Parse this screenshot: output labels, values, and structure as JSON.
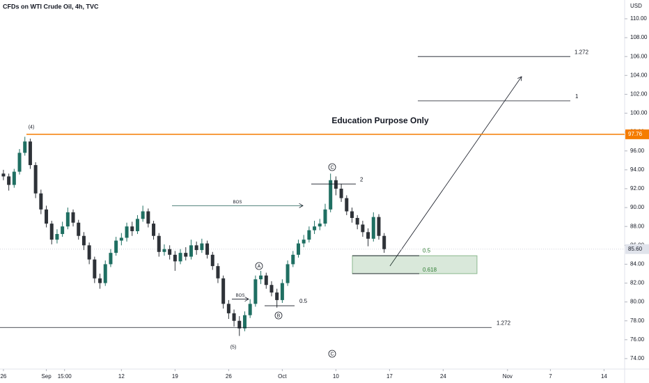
{
  "chart_data": {
    "type": "candlestick",
    "title": "CFDs on WTI Crude Oil, 4h, TVC",
    "y_axis_label": "USD",
    "watermark": "Education Purpose Only",
    "up_color": "#1f6f62",
    "down_color": "#2e3238",
    "xlim": [
      -0.32,
      57.92
    ],
    "xticks": [
      {
        "value": 0,
        "label": "26"
      },
      {
        "value": 4,
        "label": "Sep"
      },
      {
        "value": 5.7,
        "label": "15:00"
      },
      {
        "value": 11,
        "label": "12"
      },
      {
        "value": 16,
        "label": "19"
      },
      {
        "value": 21,
        "label": "26"
      },
      {
        "value": 26,
        "label": "Oct"
      },
      {
        "value": 31,
        "label": "10"
      },
      {
        "value": 36,
        "label": "17"
      },
      {
        "value": 41,
        "label": "24"
      },
      {
        "value": 47,
        "label": "Nov"
      },
      {
        "value": 51,
        "label": "7"
      },
      {
        "value": 56,
        "label": "14"
      }
    ],
    "ylim": [
      72.89,
      111.99
    ],
    "yticks": [
      {
        "value": 74,
        "label": "74.00"
      },
      {
        "value": 76,
        "label": "76.00"
      },
      {
        "value": 78,
        "label": "78.00"
      },
      {
        "value": 80,
        "label": "80.00"
      },
      {
        "value": 82,
        "label": "82.00"
      },
      {
        "value": 84,
        "label": "84.00"
      },
      {
        "value": 86,
        "label": "86.00"
      },
      {
        "value": 88,
        "label": "88.00"
      },
      {
        "value": 90,
        "label": "90.00"
      },
      {
        "value": 92,
        "label": "92.00"
      },
      {
        "value": 94,
        "label": "94.00"
      },
      {
        "value": 96,
        "label": "96.00"
      },
      {
        "value": 98,
        "label": "98.00"
      },
      {
        "value": 100,
        "label": "100.00"
      },
      {
        "value": 102,
        "label": "102.00"
      },
      {
        "value": 104,
        "label": "104.00"
      },
      {
        "value": 106,
        "label": "106.00"
      },
      {
        "value": 108,
        "label": "108.00"
      },
      {
        "value": 110,
        "label": "110.00"
      }
    ],
    "x": [
      0,
      0.5,
      1,
      1.5,
      2,
      2.5,
      3,
      3.5,
      4,
      4.5,
      5,
      5.5,
      6,
      6.5,
      7,
      7.5,
      8,
      8.5,
      9,
      9.5,
      10,
      10.5,
      11,
      11.5,
      12,
      12.5,
      13,
      13.5,
      14,
      14.5,
      15,
      15.5,
      16,
      16.5,
      17,
      17.5,
      18,
      18.5,
      19,
      19.5,
      20,
      20.5,
      21,
      21.5,
      22,
      22.5,
      23,
      23.5,
      24,
      24.5,
      25,
      25.5,
      26,
      26.5,
      27,
      27.5,
      28,
      28.5,
      29,
      29.5,
      30,
      30.5,
      31,
      31.5,
      32,
      32.5,
      33,
      33.5,
      34,
      34.5,
      35,
      35.5
    ],
    "candles": [
      [
        93.6,
        94.0,
        92.9,
        93.3
      ],
      [
        93.3,
        93.6,
        91.8,
        92.4
      ],
      [
        92.4,
        94.1,
        92.1,
        93.8
      ],
      [
        93.8,
        96.2,
        93.5,
        95.8
      ],
      [
        95.8,
        97.5,
        95.5,
        97.0
      ],
      [
        97.0,
        97.3,
        94.1,
        94.5
      ],
      [
        94.5,
        94.8,
        91.0,
        91.5
      ],
      [
        91.5,
        91.9,
        89.3,
        89.8
      ],
      [
        89.8,
        90.2,
        87.9,
        88.3
      ],
      [
        88.3,
        88.6,
        86.1,
        86.6
      ],
      [
        86.6,
        87.7,
        86.2,
        87.2
      ],
      [
        87.2,
        88.5,
        86.9,
        88.0
      ],
      [
        88.0,
        90.0,
        87.7,
        89.5
      ],
      [
        89.5,
        89.8,
        88.0,
        88.4
      ],
      [
        88.4,
        88.7,
        86.6,
        87.0
      ],
      [
        87.0,
        87.4,
        85.5,
        86.0
      ],
      [
        86.0,
        86.3,
        84.0,
        84.5
      ],
      [
        84.5,
        84.8,
        82.0,
        82.5
      ],
      [
        82.5,
        83.0,
        81.4,
        82.0
      ],
      [
        82.0,
        84.4,
        81.7,
        84.0
      ],
      [
        84.0,
        85.6,
        83.7,
        85.2
      ],
      [
        85.2,
        86.9,
        84.9,
        86.5
      ],
      [
        86.5,
        87.3,
        86.0,
        86.8
      ],
      [
        86.8,
        88.4,
        86.4,
        88.0
      ],
      [
        88.0,
        88.5,
        87.0,
        87.5
      ],
      [
        87.5,
        89.2,
        87.2,
        88.8
      ],
      [
        88.8,
        90.2,
        88.5,
        89.6
      ],
      [
        89.6,
        89.9,
        87.9,
        88.3
      ],
      [
        88.3,
        88.6,
        86.6,
        87.0
      ],
      [
        87.0,
        87.3,
        84.8,
        85.3
      ],
      [
        85.3,
        86.1,
        84.9,
        85.6
      ],
      [
        85.6,
        86.0,
        84.5,
        85.0
      ],
      [
        85.0,
        85.4,
        83.3,
        84.3
      ],
      [
        84.3,
        85.6,
        84.0,
        85.2
      ],
      [
        85.2,
        85.8,
        84.4,
        84.8
      ],
      [
        84.8,
        86.6,
        84.5,
        86.0
      ],
      [
        86.0,
        86.4,
        85.0,
        85.5
      ],
      [
        85.5,
        86.7,
        85.2,
        86.2
      ],
      [
        86.2,
        86.5,
        84.6,
        85.0
      ],
      [
        85.0,
        85.3,
        83.4,
        83.8
      ],
      [
        83.8,
        84.1,
        82.0,
        82.5
      ],
      [
        82.5,
        82.8,
        79.3,
        79.8
      ],
      [
        79.8,
        80.2,
        78.2,
        78.8
      ],
      [
        78.8,
        79.2,
        77.4,
        78.0
      ],
      [
        78.0,
        78.5,
        76.4,
        77.2
      ],
      [
        77.2,
        79.0,
        76.9,
        78.6
      ],
      [
        78.6,
        80.3,
        78.3,
        79.8
      ],
      [
        79.8,
        82.8,
        79.5,
        82.4
      ],
      [
        82.4,
        83.3,
        81.9,
        82.8
      ],
      [
        82.8,
        83.1,
        81.4,
        81.8
      ],
      [
        81.8,
        82.2,
        80.6,
        81.0
      ],
      [
        81.0,
        81.4,
        79.4,
        80.2
      ],
      [
        80.2,
        82.4,
        79.9,
        82.0
      ],
      [
        82.0,
        84.4,
        81.7,
        84.0
      ],
      [
        84.0,
        85.4,
        83.7,
        85.0
      ],
      [
        85.0,
        86.6,
        84.7,
        86.2
      ],
      [
        86.2,
        87.1,
        85.8,
        86.6
      ],
      [
        86.6,
        88.0,
        86.3,
        87.6
      ],
      [
        87.6,
        88.6,
        87.2,
        88.0
      ],
      [
        88.0,
        88.8,
        87.6,
        88.3
      ],
      [
        88.3,
        90.4,
        88.0,
        89.8
      ],
      [
        89.8,
        93.6,
        89.5,
        92.9
      ],
      [
        92.9,
        93.3,
        91.3,
        92.0
      ],
      [
        92.0,
        92.5,
        90.6,
        91.0
      ],
      [
        91.0,
        91.3,
        89.2,
        89.6
      ],
      [
        89.6,
        90.0,
        88.4,
        88.9
      ],
      [
        88.9,
        89.2,
        87.7,
        88.2
      ],
      [
        88.2,
        88.6,
        86.9,
        87.4
      ],
      [
        87.4,
        87.8,
        85.9,
        86.7
      ],
      [
        86.7,
        89.5,
        86.4,
        89.0
      ],
      [
        89.0,
        89.3,
        86.6,
        87.0
      ],
      [
        87.0,
        87.3,
        85.2,
        85.6
      ]
    ],
    "resistance": {
      "value": 97.76,
      "label": "97.76",
      "color": "#f57c00"
    },
    "last_price": {
      "value": 85.6,
      "label": "85.60"
    },
    "levels": [
      {
        "label": "1.272",
        "value": 106.0
      },
      {
        "label": "1",
        "value": 101.3
      },
      {
        "label": "2",
        "value": 92.5
      },
      {
        "label": "0.5",
        "value": 79.6
      },
      {
        "label": "1.272",
        "value": 77.3
      }
    ],
    "zone": {
      "top": 84.9,
      "bottom": 83.0,
      "top_label": "0.5",
      "bottom_label": "0.618",
      "color": "#2e7d32"
    },
    "bos": [
      {
        "label": "BOS",
        "value": 90.2
      },
      {
        "label": "BOS",
        "value": 80.3
      }
    ],
    "wave_labels": [
      "(4)",
      "(5)",
      "A",
      "B",
      "C",
      "C"
    ]
  }
}
